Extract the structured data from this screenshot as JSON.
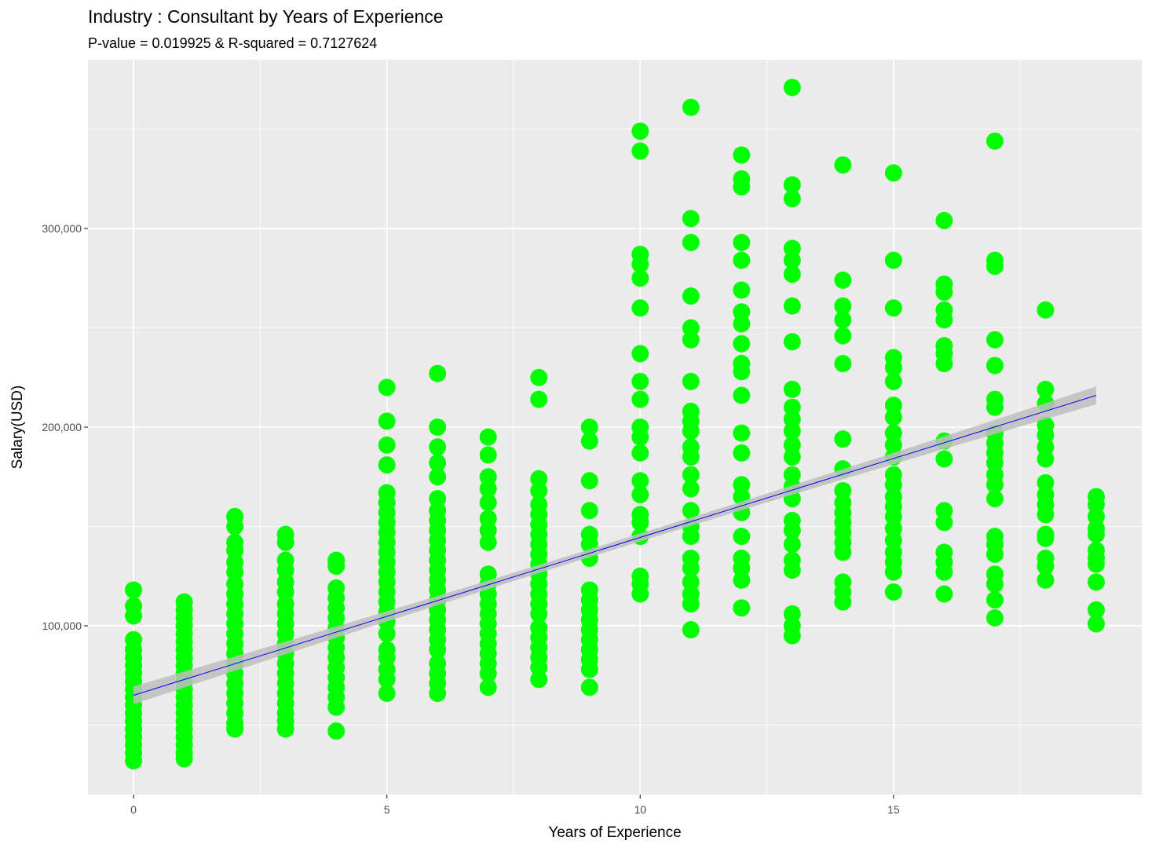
{
  "chart_data": {
    "type": "scatter",
    "title": "Industry : Consultant by Years of Experience",
    "subtitle": "P-value = 0.019925 & R-squared = 0.7127624",
    "xlabel": "Years of Experience",
    "ylabel": "Salary(USD)",
    "xlim": [
      -0.9,
      19.9
    ],
    "ylim": [
      15000,
      385000
    ],
    "x_ticks": [
      0,
      5,
      10,
      15
    ],
    "x_tick_labels": [
      "0",
      "5",
      "10",
      "15"
    ],
    "y_ticks": [
      100000,
      200000,
      300000
    ],
    "y_tick_labels": [
      "100,000",
      "200,000",
      "300,000"
    ],
    "grid": true,
    "colors": {
      "points": "#00FF00",
      "trend_line": "#0000FF",
      "confidence_band": "#BEBEBE",
      "panel_background": "#EBEBEB",
      "grid": "#FFFFFF"
    },
    "trend_line": {
      "x": [
        0,
        19
      ],
      "y": [
        65000,
        216000
      ],
      "band_halfwidth_ends": 4500,
      "band_halfwidth_center": 2000
    },
    "points": [
      [
        0,
        118000
      ],
      [
        0,
        110000
      ],
      [
        0,
        105000
      ],
      [
        0,
        93000
      ],
      [
        0,
        88000
      ],
      [
        0,
        84000
      ],
      [
        0,
        80000
      ],
      [
        0,
        76000
      ],
      [
        0,
        72000
      ],
      [
        0,
        68000
      ],
      [
        0,
        64000
      ],
      [
        0,
        60000
      ],
      [
        0,
        56000
      ],
      [
        0,
        52000
      ],
      [
        0,
        48000
      ],
      [
        0,
        44000
      ],
      [
        0,
        40000
      ],
      [
        0,
        36000
      ],
      [
        0,
        32000
      ],
      [
        1,
        112000
      ],
      [
        1,
        108000
      ],
      [
        1,
        104000
      ],
      [
        1,
        100000
      ],
      [
        1,
        96000
      ],
      [
        1,
        92000
      ],
      [
        1,
        88000
      ],
      [
        1,
        84000
      ],
      [
        1,
        80000
      ],
      [
        1,
        76000
      ],
      [
        1,
        72000
      ],
      [
        1,
        68000
      ],
      [
        1,
        64000
      ],
      [
        1,
        60000
      ],
      [
        1,
        56000
      ],
      [
        1,
        52000
      ],
      [
        1,
        48000
      ],
      [
        1,
        44000
      ],
      [
        1,
        40000
      ],
      [
        1,
        36000
      ],
      [
        1,
        33000
      ],
      [
        2,
        155000
      ],
      [
        2,
        150000
      ],
      [
        2,
        142000
      ],
      [
        2,
        138000
      ],
      [
        2,
        132000
      ],
      [
        2,
        127000
      ],
      [
        2,
        121000
      ],
      [
        2,
        116000
      ],
      [
        2,
        111000
      ],
      [
        2,
        106000
      ],
      [
        2,
        101000
      ],
      [
        2,
        96000
      ],
      [
        2,
        91000
      ],
      [
        2,
        86000
      ],
      [
        2,
        81000
      ],
      [
        2,
        76000
      ],
      [
        2,
        71000
      ],
      [
        2,
        66000
      ],
      [
        2,
        61000
      ],
      [
        2,
        56000
      ],
      [
        2,
        51000
      ],
      [
        2,
        48000
      ],
      [
        3,
        146000
      ],
      [
        3,
        142000
      ],
      [
        3,
        133000
      ],
      [
        3,
        128000
      ],
      [
        3,
        122000
      ],
      [
        3,
        117000
      ],
      [
        3,
        111000
      ],
      [
        3,
        106000
      ],
      [
        3,
        101000
      ],
      [
        3,
        96000
      ],
      [
        3,
        91000
      ],
      [
        3,
        86000
      ],
      [
        3,
        81000
      ],
      [
        3,
        76000
      ],
      [
        3,
        71000
      ],
      [
        3,
        66000
      ],
      [
        3,
        61000
      ],
      [
        3,
        56000
      ],
      [
        3,
        52000
      ],
      [
        3,
        48000
      ],
      [
        4,
        133000
      ],
      [
        4,
        130000
      ],
      [
        4,
        119000
      ],
      [
        4,
        114000
      ],
      [
        4,
        109000
      ],
      [
        4,
        104000
      ],
      [
        4,
        99000
      ],
      [
        4,
        94000
      ],
      [
        4,
        89000
      ],
      [
        4,
        84000
      ],
      [
        4,
        79000
      ],
      [
        4,
        74000
      ],
      [
        4,
        69000
      ],
      [
        4,
        64000
      ],
      [
        4,
        59000
      ],
      [
        4,
        47000
      ],
      [
        5,
        220000
      ],
      [
        5,
        203000
      ],
      [
        5,
        191000
      ],
      [
        5,
        181000
      ],
      [
        5,
        167000
      ],
      [
        5,
        162000
      ],
      [
        5,
        157000
      ],
      [
        5,
        152000
      ],
      [
        5,
        147000
      ],
      [
        5,
        142000
      ],
      [
        5,
        137000
      ],
      [
        5,
        132000
      ],
      [
        5,
        127000
      ],
      [
        5,
        122000
      ],
      [
        5,
        117000
      ],
      [
        5,
        112000
      ],
      [
        5,
        107000
      ],
      [
        5,
        102000
      ],
      [
        5,
        96000
      ],
      [
        5,
        88000
      ],
      [
        5,
        84000
      ],
      [
        5,
        78000
      ],
      [
        5,
        73000
      ],
      [
        5,
        66000
      ],
      [
        6,
        227000
      ],
      [
        6,
        200000
      ],
      [
        6,
        190000
      ],
      [
        6,
        182000
      ],
      [
        6,
        175000
      ],
      [
        6,
        164000
      ],
      [
        6,
        158000
      ],
      [
        6,
        153000
      ],
      [
        6,
        148000
      ],
      [
        6,
        143000
      ],
      [
        6,
        138000
      ],
      [
        6,
        133000
      ],
      [
        6,
        128000
      ],
      [
        6,
        123000
      ],
      [
        6,
        118000
      ],
      [
        6,
        113000
      ],
      [
        6,
        108000
      ],
      [
        6,
        103000
      ],
      [
        6,
        98000
      ],
      [
        6,
        93000
      ],
      [
        6,
        88000
      ],
      [
        6,
        81000
      ],
      [
        6,
        76000
      ],
      [
        6,
        71000
      ],
      [
        6,
        66000
      ],
      [
        7,
        195000
      ],
      [
        7,
        186000
      ],
      [
        7,
        175000
      ],
      [
        7,
        169000
      ],
      [
        7,
        162000
      ],
      [
        7,
        154000
      ],
      [
        7,
        148000
      ],
      [
        7,
        142000
      ],
      [
        7,
        126000
      ],
      [
        7,
        121000
      ],
      [
        7,
        116000
      ],
      [
        7,
        111000
      ],
      [
        7,
        106000
      ],
      [
        7,
        101000
      ],
      [
        7,
        96000
      ],
      [
        7,
        91000
      ],
      [
        7,
        86000
      ],
      [
        7,
        81000
      ],
      [
        7,
        76000
      ],
      [
        7,
        69000
      ],
      [
        8,
        225000
      ],
      [
        8,
        214000
      ],
      [
        8,
        174000
      ],
      [
        8,
        168000
      ],
      [
        8,
        161000
      ],
      [
        8,
        156000
      ],
      [
        8,
        151000
      ],
      [
        8,
        146000
      ],
      [
        8,
        141000
      ],
      [
        8,
        136000
      ],
      [
        8,
        131000
      ],
      [
        8,
        126000
      ],
      [
        8,
        121000
      ],
      [
        8,
        116000
      ],
      [
        8,
        111000
      ],
      [
        8,
        106000
      ],
      [
        8,
        99000
      ],
      [
        8,
        94000
      ],
      [
        8,
        89000
      ],
      [
        8,
        84000
      ],
      [
        8,
        79000
      ],
      [
        8,
        73000
      ],
      [
        9,
        200000
      ],
      [
        9,
        193000
      ],
      [
        9,
        173000
      ],
      [
        9,
        158000
      ],
      [
        9,
        146000
      ],
      [
        9,
        141000
      ],
      [
        9,
        134000
      ],
      [
        9,
        118000
      ],
      [
        9,
        113000
      ],
      [
        9,
        108000
      ],
      [
        9,
        103000
      ],
      [
        9,
        98000
      ],
      [
        9,
        93000
      ],
      [
        9,
        88000
      ],
      [
        9,
        83000
      ],
      [
        9,
        78000
      ],
      [
        9,
        69000
      ],
      [
        10,
        349000
      ],
      [
        10,
        339000
      ],
      [
        10,
        287000
      ],
      [
        10,
        282000
      ],
      [
        10,
        275000
      ],
      [
        10,
        260000
      ],
      [
        10,
        237000
      ],
      [
        10,
        223000
      ],
      [
        10,
        214000
      ],
      [
        10,
        200000
      ],
      [
        10,
        195000
      ],
      [
        10,
        187000
      ],
      [
        10,
        173000
      ],
      [
        10,
        166000
      ],
      [
        10,
        156000
      ],
      [
        10,
        152000
      ],
      [
        10,
        145000
      ],
      [
        10,
        125000
      ],
      [
        10,
        121000
      ],
      [
        10,
        116000
      ],
      [
        11,
        361000
      ],
      [
        11,
        305000
      ],
      [
        11,
        293000
      ],
      [
        11,
        266000
      ],
      [
        11,
        250000
      ],
      [
        11,
        244000
      ],
      [
        11,
        223000
      ],
      [
        11,
        208000
      ],
      [
        11,
        203000
      ],
      [
        11,
        198000
      ],
      [
        11,
        190000
      ],
      [
        11,
        185000
      ],
      [
        11,
        176000
      ],
      [
        11,
        169000
      ],
      [
        11,
        158000
      ],
      [
        11,
        150000
      ],
      [
        11,
        145000
      ],
      [
        11,
        134000
      ],
      [
        11,
        129000
      ],
      [
        11,
        122000
      ],
      [
        11,
        116000
      ],
      [
        11,
        111000
      ],
      [
        11,
        98000
      ],
      [
        12,
        337000
      ],
      [
        12,
        325000
      ],
      [
        12,
        321000
      ],
      [
        12,
        293000
      ],
      [
        12,
        284000
      ],
      [
        12,
        269000
      ],
      [
        12,
        258000
      ],
      [
        12,
        252000
      ],
      [
        12,
        242000
      ],
      [
        12,
        232000
      ],
      [
        12,
        228000
      ],
      [
        12,
        216000
      ],
      [
        12,
        197000
      ],
      [
        12,
        187000
      ],
      [
        12,
        171000
      ],
      [
        12,
        165000
      ],
      [
        12,
        157000
      ],
      [
        12,
        145000
      ],
      [
        12,
        134000
      ],
      [
        12,
        129000
      ],
      [
        12,
        123000
      ],
      [
        12,
        109000
      ],
      [
        13,
        371000
      ],
      [
        13,
        322000
      ],
      [
        13,
        315000
      ],
      [
        13,
        290000
      ],
      [
        13,
        284000
      ],
      [
        13,
        277000
      ],
      [
        13,
        261000
      ],
      [
        13,
        243000
      ],
      [
        13,
        219000
      ],
      [
        13,
        210000
      ],
      [
        13,
        204000
      ],
      [
        13,
        198000
      ],
      [
        13,
        191000
      ],
      [
        13,
        185000
      ],
      [
        13,
        176000
      ],
      [
        13,
        170000
      ],
      [
        13,
        164000
      ],
      [
        13,
        153000
      ],
      [
        13,
        148000
      ],
      [
        13,
        141000
      ],
      [
        13,
        133000
      ],
      [
        13,
        128000
      ],
      [
        13,
        106000
      ],
      [
        13,
        100000
      ],
      [
        13,
        95000
      ],
      [
        14,
        332000
      ],
      [
        14,
        274000
      ],
      [
        14,
        261000
      ],
      [
        14,
        254000
      ],
      [
        14,
        246000
      ],
      [
        14,
        232000
      ],
      [
        14,
        194000
      ],
      [
        14,
        179000
      ],
      [
        14,
        168000
      ],
      [
        14,
        162000
      ],
      [
        14,
        157000
      ],
      [
        14,
        152000
      ],
      [
        14,
        147000
      ],
      [
        14,
        142000
      ],
      [
        14,
        137000
      ],
      [
        14,
        122000
      ],
      [
        14,
        117000
      ],
      [
        14,
        112000
      ],
      [
        15,
        328000
      ],
      [
        15,
        284000
      ],
      [
        15,
        260000
      ],
      [
        15,
        235000
      ],
      [
        15,
        230000
      ],
      [
        15,
        223000
      ],
      [
        15,
        211000
      ],
      [
        15,
        205000
      ],
      [
        15,
        197000
      ],
      [
        15,
        191000
      ],
      [
        15,
        185000
      ],
      [
        15,
        176000
      ],
      [
        15,
        171000
      ],
      [
        15,
        165000
      ],
      [
        15,
        160000
      ],
      [
        15,
        155000
      ],
      [
        15,
        149000
      ],
      [
        15,
        143000
      ],
      [
        15,
        137000
      ],
      [
        15,
        132000
      ],
      [
        15,
        127000
      ],
      [
        15,
        117000
      ],
      [
        16,
        304000
      ],
      [
        16,
        272000
      ],
      [
        16,
        268000
      ],
      [
        16,
        259000
      ],
      [
        16,
        254000
      ],
      [
        16,
        241000
      ],
      [
        16,
        237000
      ],
      [
        16,
        232000
      ],
      [
        16,
        193000
      ],
      [
        16,
        184000
      ],
      [
        16,
        158000
      ],
      [
        16,
        152000
      ],
      [
        16,
        137000
      ],
      [
        16,
        132000
      ],
      [
        16,
        127000
      ],
      [
        16,
        116000
      ],
      [
        17,
        344000
      ],
      [
        17,
        284000
      ],
      [
        17,
        281000
      ],
      [
        17,
        244000
      ],
      [
        17,
        231000
      ],
      [
        17,
        214000
      ],
      [
        17,
        210000
      ],
      [
        17,
        197000
      ],
      [
        17,
        192000
      ],
      [
        17,
        187000
      ],
      [
        17,
        182000
      ],
      [
        17,
        176000
      ],
      [
        17,
        171000
      ],
      [
        17,
        164000
      ],
      [
        17,
        145000
      ],
      [
        17,
        141000
      ],
      [
        17,
        136000
      ],
      [
        17,
        126000
      ],
      [
        17,
        121000
      ],
      [
        17,
        113000
      ],
      [
        17,
        104000
      ],
      [
        18,
        259000
      ],
      [
        18,
        219000
      ],
      [
        18,
        212000
      ],
      [
        18,
        201000
      ],
      [
        18,
        196000
      ],
      [
        18,
        190000
      ],
      [
        18,
        184000
      ],
      [
        18,
        172000
      ],
      [
        18,
        166000
      ],
      [
        18,
        161000
      ],
      [
        18,
        156000
      ],
      [
        18,
        146000
      ],
      [
        18,
        144000
      ],
      [
        18,
        134000
      ],
      [
        18,
        130000
      ],
      [
        18,
        123000
      ],
      [
        19,
        165000
      ],
      [
        19,
        161000
      ],
      [
        19,
        155000
      ],
      [
        19,
        149000
      ],
      [
        19,
        146000
      ],
      [
        19,
        138000
      ],
      [
        19,
        134000
      ],
      [
        19,
        131000
      ],
      [
        19,
        122000
      ],
      [
        19,
        108000
      ],
      [
        19,
        101000
      ]
    ]
  }
}
